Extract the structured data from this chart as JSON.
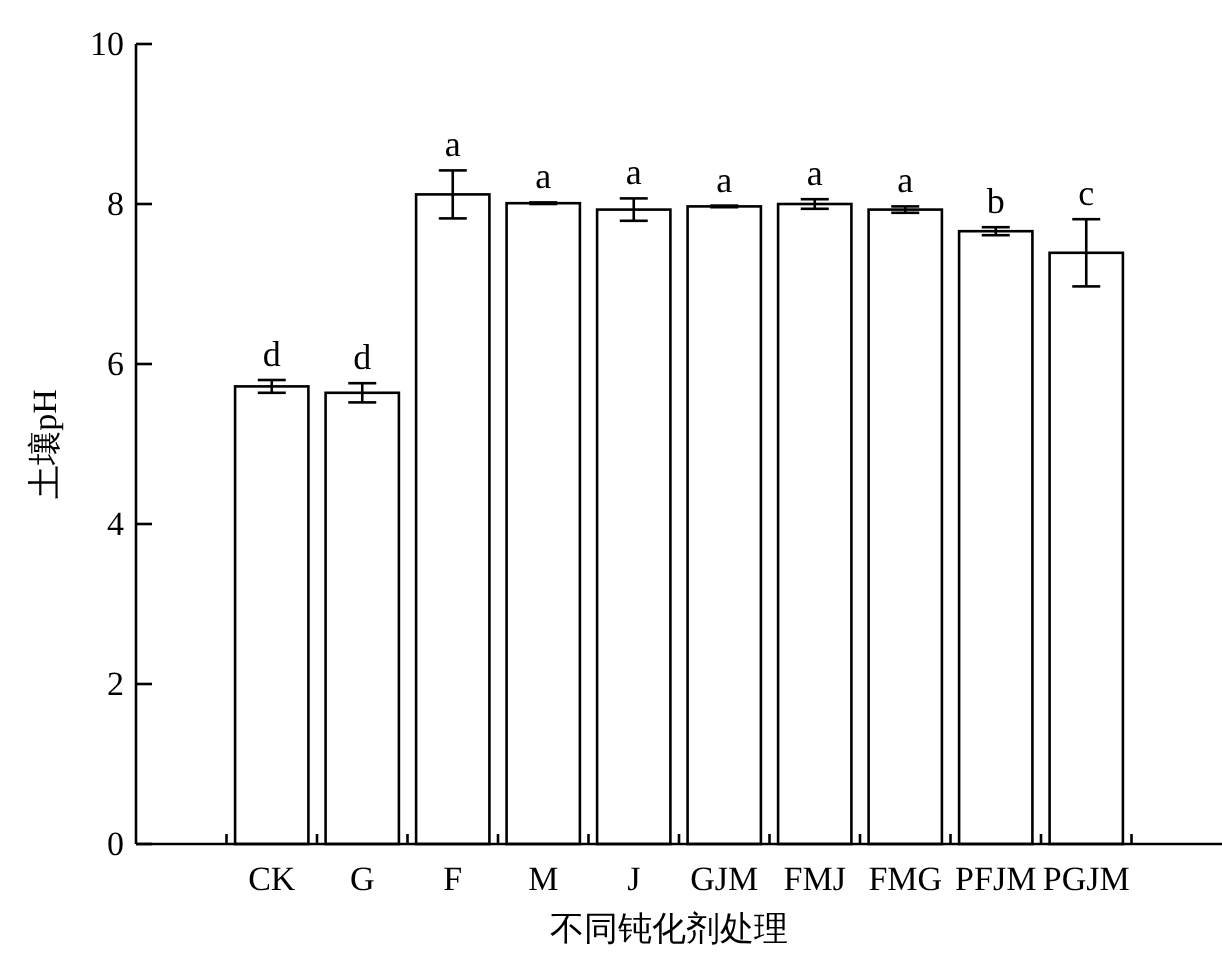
{
  "chart_data": {
    "type": "bar",
    "xlabel": "不同钝化剂处理",
    "ylabel": "土壤pH",
    "categories": [
      "CK",
      "G",
      "F",
      "M",
      "J",
      "GJM",
      "FMJ",
      "FMG",
      "PFJM",
      "PGJM"
    ],
    "values": [
      5.72,
      5.64,
      8.12,
      8.01,
      7.93,
      7.97,
      8.0,
      7.93,
      7.66,
      7.39
    ],
    "errors": [
      0.08,
      0.12,
      0.3,
      0.01,
      0.14,
      0.01,
      0.06,
      0.04,
      0.05,
      0.42
    ],
    "color": "#ffffff",
    "ylim": [
      0,
      10
    ],
    "yticks": [
      0,
      2,
      4,
      6,
      8,
      10
    ],
    "annotations": [
      {
        "text": "d",
        "x": "CK",
        "y": 5.8
      },
      {
        "text": "d",
        "x": "G",
        "y": 5.76
      },
      {
        "text": "a",
        "x": "F",
        "y": 8.42
      },
      {
        "text": "a",
        "x": "M",
        "y": 8.02
      },
      {
        "text": "a",
        "x": "J",
        "y": 8.07
      },
      {
        "text": "a",
        "x": "GJM",
        "y": 7.98
      },
      {
        "text": "a",
        "x": "FMJ",
        "y": 8.06
      },
      {
        "text": "a",
        "x": "FMG",
        "y": 7.97
      },
      {
        "text": "b",
        "x": "PFJM",
        "y": 7.71
      },
      {
        "text": "c",
        "x": "PGJM",
        "y": 7.81
      }
    ]
  }
}
